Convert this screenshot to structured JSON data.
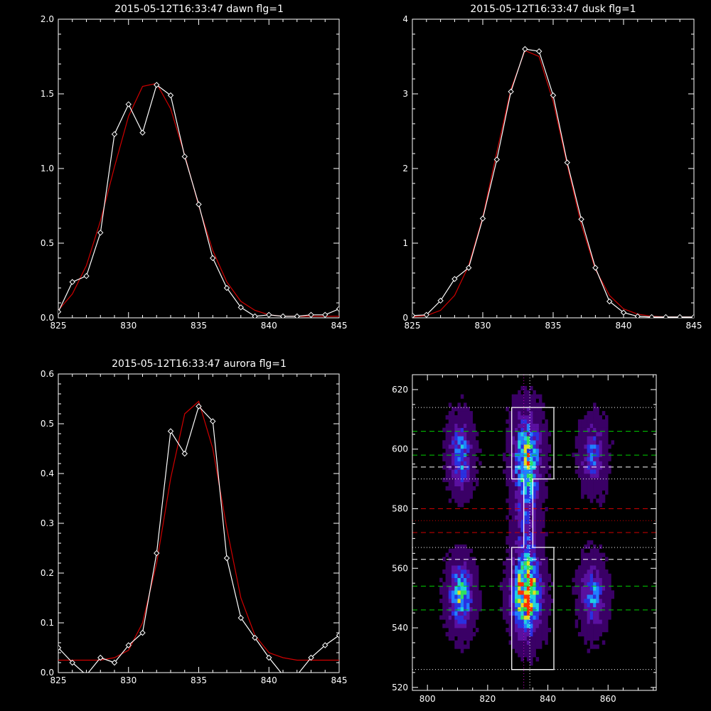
{
  "chart_data": [
    {
      "type": "line",
      "title": "2015-05-12T16:33:47 dawn flg=1",
      "xlim": [
        825,
        845
      ],
      "ylim": [
        0,
        2.0
      ],
      "xticks": [
        "825",
        "830",
        "835",
        "840",
        "845"
      ],
      "yticks": [
        "0.0",
        "0.5",
        "1.0",
        "1.5",
        "2.0"
      ],
      "series": [
        {
          "color": "#ffffff",
          "markers": "diamond",
          "x": [
            825,
            826,
            827,
            828,
            829,
            830,
            831,
            832,
            833,
            834,
            835,
            836,
            837,
            838,
            839,
            840,
            841,
            842,
            843,
            844,
            845
          ],
          "y": [
            0.04,
            0.24,
            0.28,
            0.57,
            1.23,
            1.43,
            1.24,
            1.56,
            1.49,
            1.08,
            0.76,
            0.4,
            0.2,
            0.07,
            0.01,
            0.02,
            0.01,
            0.01,
            0.02,
            0.02,
            0.06
          ]
        },
        {
          "color": "#d00000",
          "markers": "none",
          "x": [
            825,
            826,
            827,
            828,
            829,
            830,
            831,
            832,
            833,
            834,
            835,
            836,
            837,
            838,
            839,
            840,
            841,
            842,
            843,
            844,
            845
          ],
          "y": [
            0.05,
            0.16,
            0.35,
            0.65,
            1.01,
            1.35,
            1.55,
            1.57,
            1.4,
            1.09,
            0.75,
            0.45,
            0.24,
            0.11,
            0.05,
            0.02,
            0.01,
            0.01,
            0.01,
            0.01,
            0.01
          ]
        }
      ]
    },
    {
      "type": "line",
      "title": "2015-05-12T16:33:47 dusk flg=1",
      "xlim": [
        825,
        845
      ],
      "ylim": [
        0,
        4
      ],
      "xticks": [
        "825",
        "830",
        "835",
        "840",
        "845"
      ],
      "yticks": [
        "0",
        "1",
        "2",
        "3",
        "4"
      ],
      "series": [
        {
          "color": "#ffffff",
          "markers": "diamond",
          "x": [
            825,
            826,
            827,
            828,
            829,
            830,
            831,
            832,
            833,
            834,
            835,
            836,
            837,
            838,
            839,
            840,
            841,
            842,
            843,
            844,
            845
          ],
          "y": [
            0.03,
            0.04,
            0.23,
            0.52,
            0.67,
            1.33,
            2.12,
            3.03,
            3.6,
            3.57,
            2.98,
            2.08,
            1.32,
            0.67,
            0.22,
            0.07,
            0.02,
            0.01,
            0.01,
            0.01,
            0.01
          ]
        },
        {
          "color": "#d00000",
          "markers": "none",
          "x": [
            825,
            826,
            827,
            828,
            829,
            830,
            831,
            832,
            833,
            834,
            835,
            836,
            837,
            838,
            839,
            840,
            841,
            842,
            843,
            844,
            845
          ],
          "y": [
            0.01,
            0.03,
            0.1,
            0.3,
            0.7,
            1.35,
            2.22,
            3.06,
            3.58,
            3.5,
            2.9,
            2.05,
            1.25,
            0.65,
            0.3,
            0.12,
            0.05,
            0.02,
            0.01,
            0.01,
            0.01
          ]
        }
      ]
    },
    {
      "type": "line",
      "title": "2015-05-12T16:33:47 aurora flg=1",
      "xlim": [
        825,
        845
      ],
      "ylim": [
        0,
        0.6
      ],
      "xticks": [
        "825",
        "830",
        "835",
        "840",
        "845"
      ],
      "yticks": [
        "0.0",
        "0.1",
        "0.2",
        "0.3",
        "0.4",
        "0.5",
        "0.6"
      ],
      "series": [
        {
          "color": "#ffffff",
          "markers": "diamond",
          "x": [
            825,
            826,
            827,
            828,
            829,
            830,
            831,
            832,
            833,
            834,
            835,
            836,
            837,
            838,
            839,
            840,
            841,
            842,
            843,
            844,
            845
          ],
          "y": [
            0.05,
            0.02,
            -0.005,
            0.03,
            0.02,
            0.055,
            0.08,
            0.24,
            0.485,
            0.44,
            0.535,
            0.505,
            0.23,
            0.11,
            0.07,
            0.03,
            -0.005,
            -0.005,
            0.03,
            0.055,
            0.075
          ]
        },
        {
          "color": "#d00000",
          "markers": "none",
          "x": [
            825,
            826,
            827,
            828,
            829,
            830,
            831,
            832,
            833,
            834,
            835,
            836,
            837,
            838,
            839,
            840,
            841,
            842,
            843,
            844,
            845
          ],
          "y": [
            0.025,
            0.025,
            0.025,
            0.025,
            0.03,
            0.045,
            0.1,
            0.22,
            0.39,
            0.52,
            0.545,
            0.45,
            0.29,
            0.15,
            0.075,
            0.04,
            0.03,
            0.025,
            0.025,
            0.025,
            0.025
          ]
        }
      ]
    },
    {
      "type": "heatmap",
      "title": "",
      "xlim": [
        795,
        876
      ],
      "ylim": [
        519,
        625
      ],
      "xticks": [
        "800",
        "820",
        "840",
        "860"
      ],
      "yticks": [
        "520",
        "540",
        "560",
        "580",
        "600",
        "620"
      ],
      "colormap": [
        "#000000",
        "#3a0066",
        "#5a10a0",
        "#2a30e0",
        "#2080ff",
        "#20d0e0",
        "#30e060",
        "#e0e020",
        "#ff3000"
      ],
      "blobs": [
        {
          "x": 811,
          "y": 598,
          "sx": 2.4,
          "sy": 7,
          "amp": 0.5
        },
        {
          "x": 811,
          "y": 551,
          "sx": 2.6,
          "sy": 7,
          "amp": 0.6
        },
        {
          "x": 833,
          "y": 598,
          "sx": 3.0,
          "sy": 9,
          "amp": 0.6
        },
        {
          "x": 833,
          "y": 551,
          "sx": 3.0,
          "sy": 8,
          "amp": 1.0
        },
        {
          "x": 833,
          "y": 576,
          "sx": 2.6,
          "sy": 14,
          "amp": 0.28
        },
        {
          "x": 855,
          "y": 598,
          "sx": 2.6,
          "sy": 7,
          "amp": 0.35
        },
        {
          "x": 855,
          "y": 551,
          "sx": 2.6,
          "sy": 7,
          "amp": 0.45
        }
      ],
      "boxes": [
        {
          "color": "#ffffff",
          "outline": [
            [
              828,
              614
            ],
            [
              842,
              614
            ],
            [
              842,
              590
            ],
            [
              835,
              590
            ],
            [
              835,
              567
            ],
            [
              842,
              567
            ],
            [
              842,
              526
            ],
            [
              828,
              526
            ],
            [
              828,
              567
            ],
            [
              832,
              567
            ],
            [
              832,
              590
            ],
            [
              828,
              590
            ]
          ]
        }
      ],
      "hlines": [
        {
          "y": 614,
          "color": "#ffffff",
          "style": "dotted"
        },
        {
          "y": 606,
          "color": "#00d000",
          "style": "dashed"
        },
        {
          "y": 598,
          "color": "#00d000",
          "style": "dashed"
        },
        {
          "y": 594,
          "color": "#ffffff",
          "style": "dashed"
        },
        {
          "y": 590,
          "color": "#ffffff",
          "style": "dotted"
        },
        {
          "y": 580,
          "color": "#d00000",
          "style": "dashed"
        },
        {
          "y": 576,
          "color": "#d00000",
          "style": "dotted"
        },
        {
          "y": 572,
          "color": "#d00000",
          "style": "dashed"
        },
        {
          "y": 567,
          "color": "#ffffff",
          "style": "dotted"
        },
        {
          "y": 563,
          "color": "#ffffff",
          "style": "dashed"
        },
        {
          "y": 554,
          "color": "#00d000",
          "style": "dashed"
        },
        {
          "y": 546,
          "color": "#00d000",
          "style": "dashed"
        },
        {
          "y": 526,
          "color": "#ffffff",
          "style": "dotted"
        }
      ],
      "vlines": [
        {
          "x": 832,
          "color": "#d000d0",
          "style": "dotted"
        },
        {
          "x": 834,
          "color": "#ffffff",
          "style": "dotted"
        }
      ]
    }
  ]
}
